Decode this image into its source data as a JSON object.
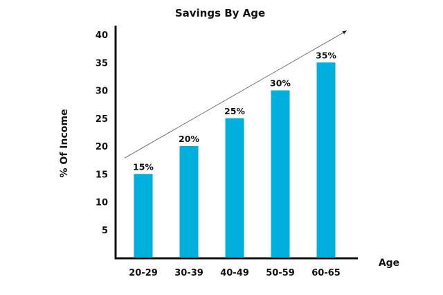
{
  "chart_data": {
    "type": "bar",
    "title": "Savings By Age",
    "xlabel": "Age",
    "ylabel": "% Of Income",
    "categories": [
      "20-29",
      "30-39",
      "40-49",
      "50-59",
      "60-65"
    ],
    "values": [
      15,
      20,
      25,
      30,
      35
    ],
    "data_labels": [
      "15%",
      "20%",
      "25%",
      "30%",
      "35%"
    ],
    "yticks": [
      "5",
      "10",
      "15",
      "20",
      "25",
      "30",
      "35",
      "40"
    ],
    "ylim": [
      0,
      40
    ],
    "bar_color": "#00b0dc",
    "grid": false,
    "legend": "none",
    "trend_arrow": true
  }
}
